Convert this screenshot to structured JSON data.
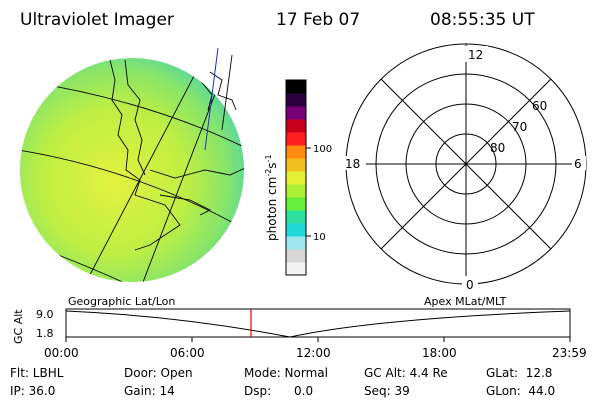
{
  "header": {
    "title": "Ultraviolet Imager",
    "date": "17 Feb 07",
    "time": "08:55:35 UT"
  },
  "colorbar": {
    "unit_label": "photon cm",
    "unit_exp1": "-2",
    "unit_s": "s",
    "unit_exp2": "-1",
    "tick_100": "100",
    "tick_10": "10",
    "colors": [
      "#f2f2f2",
      "#d6d6d6",
      "#a0e6ee",
      "#20d8d8",
      "#2ee0a0",
      "#66ee3a",
      "#aaf032",
      "#e6f032",
      "#f0c020",
      "#ff8c10",
      "#ff2020",
      "#c8001c",
      "#7a0078",
      "#2a0040",
      "#000000"
    ]
  },
  "polar_plot": {
    "mlt_top": "12",
    "mlt_bottom": "0",
    "mlt_left": "18",
    "mlt_right": "6",
    "lat_60": "60",
    "lat_70": "70",
    "lat_80": "80"
  },
  "image_disk": {
    "fill_base": "#b8ec48",
    "fill_edge": "#6edc8a"
  },
  "altitude_strip": {
    "left_label": "Geographic Lat/Lon",
    "right_label": "Apex MLat/MLT",
    "axis_label": "GC Alt",
    "y_top": "9.0",
    "y_bottom": "1.8",
    "x_ticks": [
      "00:00",
      "06:00",
      "12:00",
      "18:00",
      "23:59"
    ],
    "marker_color": "#e00000"
  },
  "info": {
    "filter": "Flt: LBHL",
    "ip": "IP: 36.0",
    "door": "Door: Open",
    "gain": "Gain: 14",
    "mode": "Mode: Normal",
    "dsp": "Dsp:      0.0",
    "gc_alt": "GC Alt: 4.4 Re",
    "seq": "Seq: 39",
    "glat": "GLat:  12.8",
    "glon": "GLon:  44.0"
  }
}
